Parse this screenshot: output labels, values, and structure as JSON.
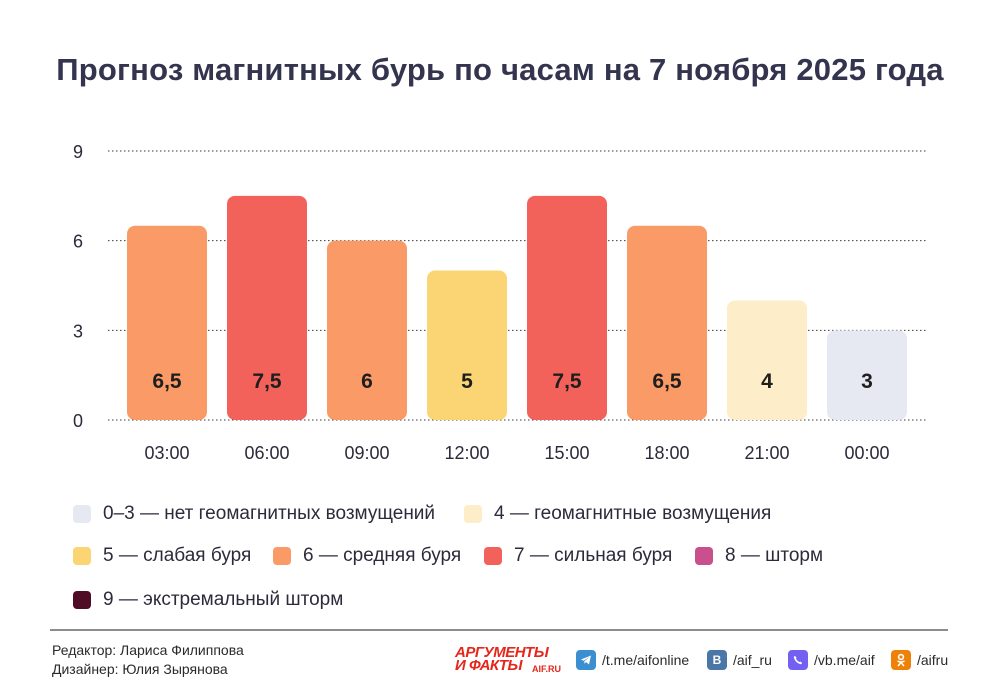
{
  "title": "Прогноз магнитных бурь по часам на 7 ноября 2025 года",
  "chart_data": {
    "type": "bar",
    "title": "Прогноз магнитных бурь по часам на 7 ноября 2025 года",
    "categories": [
      "03:00",
      "06:00",
      "09:00",
      "12:00",
      "15:00",
      "18:00",
      "21:00",
      "00:00"
    ],
    "values": [
      6.5,
      7.5,
      6,
      5,
      7.5,
      6.5,
      4,
      3
    ],
    "value_labels": [
      "6,5",
      "7,5",
      "6",
      "5",
      "7,5",
      "6,5",
      "4",
      "3"
    ],
    "bar_colors": [
      "#fa9a66",
      "#f2625a",
      "#fa9a66",
      "#fbd573",
      "#f2625a",
      "#fa9a66",
      "#fdedc8",
      "#e6e8f2"
    ],
    "yticks": [
      "0",
      "3",
      "6",
      "9"
    ],
    "ylim": [
      0,
      9
    ],
    "grid": "dotted horizontal"
  },
  "legend": [
    {
      "label": "0–3 — нет геомагнитных возмущений",
      "color": "#e6e8f2"
    },
    {
      "label": "4 — геомагнитные возмущения",
      "color": "#fdedc8"
    },
    {
      "label": "5 — слабая буря",
      "color": "#fbd573"
    },
    {
      "label": "6 — средняя буря",
      "color": "#fa9a66"
    },
    {
      "label": "7 — сильная буря",
      "color": "#f2625a"
    },
    {
      "label": "8 — шторм",
      "color": "#c9508d"
    },
    {
      "label": "9 — экстремальный шторм",
      "color": "#4e0d25"
    }
  ],
  "footer": {
    "editor": "Редактор: Лариса Филиппова",
    "designer": "Дизайнер: Юлия Зырянова",
    "logo_line1": "АРГУМЕНТЫ",
    "logo_line2": "И ФАКТЫ",
    "logo_domain": "AIF.RU",
    "socials": [
      {
        "icon": "telegram-icon",
        "label": "/t.me/aifonline",
        "color": "#3b8fd0"
      },
      {
        "icon": "vk-icon",
        "label": "/aif_ru",
        "color": "#4a76a8"
      },
      {
        "icon": "viber-icon",
        "label": "/vb.me/aif",
        "color": "#7360f2"
      },
      {
        "icon": "odnoklassniki-icon",
        "label": "/aifru",
        "color": "#ee8208"
      }
    ]
  }
}
